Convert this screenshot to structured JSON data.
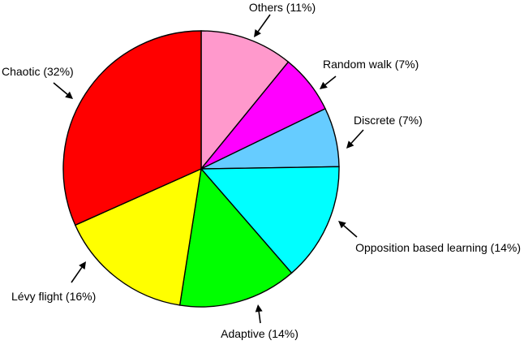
{
  "chart_data": {
    "type": "pie",
    "slices": [
      {
        "label": "Others (11%)",
        "category": "Others",
        "value": 11,
        "color": "#FF99CC"
      },
      {
        "label": "Random walk (7%)",
        "category": "Random walk",
        "value": 7,
        "color": "#FF00FF"
      },
      {
        "label": "Discrete (7%)",
        "category": "Discrete",
        "value": 7,
        "color": "#66CCFF"
      },
      {
        "label": "Opposition based learning (14%)",
        "category": "Opposition based learning",
        "value": 14,
        "color": "#00FFFF"
      },
      {
        "label": "Adaptive (14%)",
        "category": "Adaptive",
        "value": 14,
        "color": "#00FF00"
      },
      {
        "label": "Lévy flight (16%)",
        "category": "Lévy flight",
        "value": 16,
        "color": "#FFFF00"
      },
      {
        "label": "Chaotic (32%)",
        "category": "Chaotic",
        "value": 32,
        "color": "#FF0000"
      }
    ],
    "start": "top",
    "direction": "clockwise",
    "legend": "none"
  }
}
